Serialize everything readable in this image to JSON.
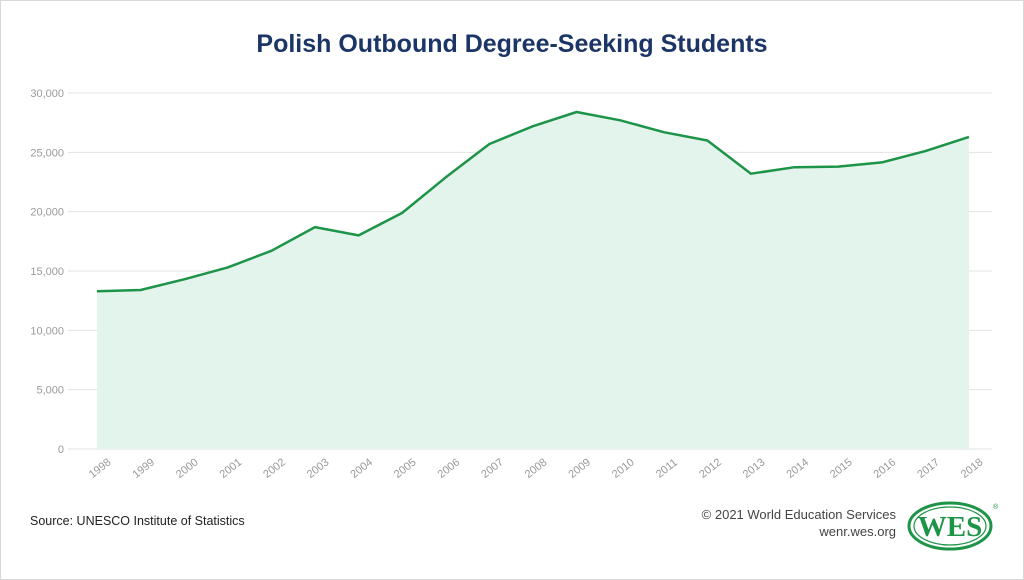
{
  "chart_data": {
    "type": "area",
    "title": "Polish Outbound Degree-Seeking Students",
    "xlabel": "",
    "ylabel": "",
    "categories": [
      "1998",
      "1999",
      "2000",
      "2001",
      "2002",
      "2003",
      "2004",
      "2005",
      "2006",
      "2007",
      "2008",
      "2009",
      "2010",
      "2011",
      "2012",
      "2013",
      "2014",
      "2015",
      "2016",
      "2017",
      "2018"
    ],
    "values": [
      13300,
      13400,
      14300,
      15300,
      16700,
      18700,
      18000,
      19900,
      22900,
      25700,
      27200,
      28400,
      27700,
      26700,
      26000,
      23200,
      23750,
      23800,
      24150,
      25100,
      26300
    ],
    "ylim": [
      0,
      30000
    ],
    "yticks": [
      "0",
      "5,000",
      "10,000",
      "15,000",
      "20,000",
      "25,000",
      "30,000"
    ],
    "grid": true,
    "legend": "none",
    "line_color": "#1e9448",
    "fill_color": "#e3f4ec"
  },
  "footer": {
    "source": "Source: UNESCO Institute of Statistics",
    "copyright": "© 2021 World Education Services",
    "url": "wenr.wes.org"
  },
  "logo": {
    "text": "WES",
    "color": "#1e9448"
  }
}
